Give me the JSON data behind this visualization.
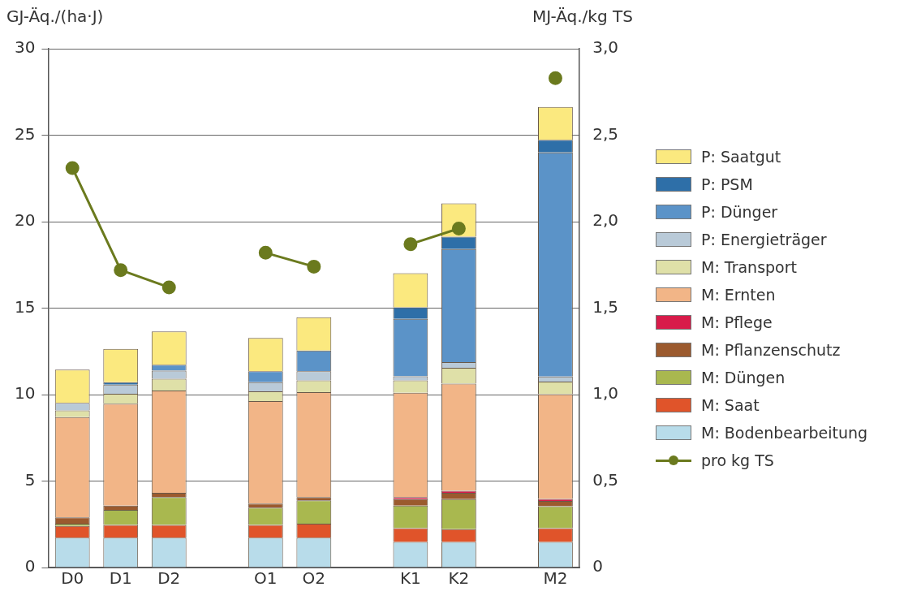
{
  "chart_data": {
    "type": "bar",
    "stacked": true,
    "ylabel": "GJ-Äq./(ha·J)",
    "y2label": "MJ-Äq./kg TS",
    "categories": [
      "D0",
      "D1",
      "D2",
      null,
      "O1",
      "O2",
      null,
      "K1",
      "K2",
      null,
      "M2"
    ],
    "ylim": [
      0,
      30
    ],
    "yticks": [
      0,
      5,
      10,
      15,
      20,
      25,
      30
    ],
    "y2lim": [
      0,
      3
    ],
    "y2ticks": [
      0,
      {
        "value": 0.5,
        "label": "0,5"
      },
      {
        "value": 1,
        "label": "1,0"
      },
      {
        "value": 1.5,
        "label": "1,5"
      },
      {
        "value": 2,
        "label": "2,0"
      },
      {
        "value": 2.5,
        "label": "2,5"
      },
      {
        "value": 3,
        "label": "3,0"
      }
    ],
    "grid": "y",
    "legend": "right",
    "series": [
      {
        "name": "M: Bodenbearbeitung",
        "color": "#b8dcea",
        "values": [
          1.73,
          1.73,
          1.73,
          null,
          1.73,
          1.73,
          null,
          1.48,
          1.48,
          null,
          1.48
        ]
      },
      {
        "name": "M: Saat",
        "color": "#e0542a",
        "values": [
          0.68,
          0.74,
          0.74,
          null,
          0.74,
          0.8,
          null,
          0.8,
          0.74,
          null,
          0.8
        ]
      },
      {
        "name": "M: Düngen",
        "color": "#a9b84f",
        "values": [
          0.12,
          0.86,
          1.6,
          null,
          0.99,
          1.36,
          null,
          1.3,
          1.73,
          null,
          1.27
        ]
      },
      {
        "name": "M: Pflanzenschutz",
        "color": "#9b5a2e",
        "values": [
          0.37,
          0.25,
          0.25,
          null,
          0.24,
          0.18,
          null,
          0.37,
          0.37,
          null,
          0.3
        ]
      },
      {
        "name": "M: Pflege",
        "color": "#d81b4a",
        "values": [
          0,
          0,
          0,
          null,
          0,
          0,
          null,
          0.12,
          0.12,
          null,
          0.12
        ]
      },
      {
        "name": "M: Ernten",
        "color": "#f2b587",
        "values": [
          5.8,
          5.89,
          5.92,
          null,
          5.92,
          6.07,
          null,
          6.03,
          6.19,
          null,
          6.05
        ]
      },
      {
        "name": "M: Transport",
        "color": "#dfe0a8",
        "values": [
          0.39,
          0.58,
          0.67,
          null,
          0.57,
          0.68,
          null,
          0.72,
          0.92,
          null,
          0.73
        ]
      },
      {
        "name": "P: Energieträger",
        "color": "#b9cad8",
        "values": [
          0.43,
          0.53,
          0.48,
          null,
          0.53,
          0.53,
          null,
          0.24,
          0.33,
          null,
          0.29
        ]
      },
      {
        "name": "P: Dünger",
        "color": "#5b93c8",
        "values": [
          0,
          0,
          0.34,
          null,
          0.63,
          1.2,
          null,
          3.32,
          6.53,
          null,
          12.96
        ]
      },
      {
        "name": "P: PSM",
        "color": "#2e6fa8",
        "values": [
          0,
          0.14,
          0,
          null,
          0,
          0,
          null,
          0.67,
          0.72,
          null,
          0.73
        ]
      },
      {
        "name": "P: Saatgut",
        "color": "#fbe97f",
        "values": [
          1.92,
          1.92,
          1.92,
          null,
          1.92,
          1.92,
          null,
          1.97,
          1.93,
          null,
          1.9
        ]
      },
      {
        "name": "pro kg TS",
        "type": "line",
        "axis": "y2",
        "marker": "circle",
        "color": "#6b7a1e",
        "values": [
          2.31,
          1.72,
          1.62,
          null,
          1.82,
          1.74,
          null,
          1.87,
          1.96,
          null,
          2.83
        ]
      }
    ]
  }
}
